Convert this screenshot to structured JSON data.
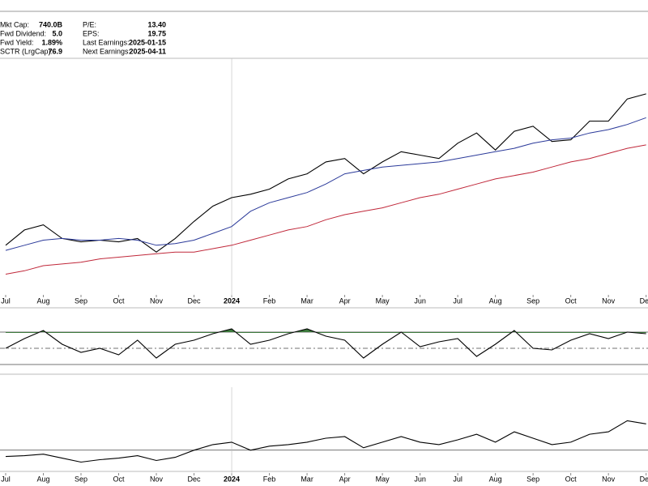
{
  "stats": [
    {
      "label": "Mkt Cap:",
      "value": "740.0B"
    },
    {
      "label": "Fwd Dividend:",
      "value": "5.0"
    },
    {
      "label": "Fwd Yield:",
      "value": "1.89%"
    },
    {
      "label": "SCTR (LrgCap):",
      "value": "76.9"
    },
    {
      "label": "P/E:",
      "value": "13.40"
    },
    {
      "label": "EPS:",
      "value": "19.75"
    },
    {
      "label": "Last Earnings:",
      "value": "2025-01-15"
    },
    {
      "label": "Next Earnings:",
      "value": "2025-04-11"
    }
  ],
  "chart_data": [
    {
      "type": "line",
      "xlim": [
        -0.15,
        17.05
      ],
      "ylim": [
        150,
        290
      ],
      "xticks": [
        {
          "value": 0,
          "label": "Jul"
        },
        {
          "value": 1,
          "label": "Aug"
        },
        {
          "value": 2,
          "label": "Sep"
        },
        {
          "value": 3,
          "label": "Oct"
        },
        {
          "value": 4,
          "label": "Nov"
        },
        {
          "value": 5,
          "label": "Dec"
        },
        {
          "value": 6,
          "label": "2024"
        },
        {
          "value": 7,
          "label": "Feb"
        },
        {
          "value": 8,
          "label": "Mar"
        },
        {
          "value": 9,
          "label": "Apr"
        },
        {
          "value": 10,
          "label": "May"
        },
        {
          "value": 11,
          "label": "Jun"
        },
        {
          "value": 12,
          "label": "Jul"
        },
        {
          "value": 13,
          "label": "Aug"
        },
        {
          "value": 14,
          "label": "Sep"
        },
        {
          "value": 15,
          "label": "Oct"
        },
        {
          "value": 16,
          "label": "Nov"
        },
        {
          "value": 17,
          "label": "Dec"
        }
      ],
      "x": [
        0,
        0.5,
        1,
        1.5,
        2,
        2.5,
        3,
        3.5,
        4,
        4.5,
        5,
        5.5,
        6,
        6.5,
        7,
        7.5,
        8,
        8.5,
        9,
        9.5,
        10,
        10.5,
        11,
        11.5,
        12,
        12.5,
        13,
        13.5,
        14,
        14.5,
        15,
        15.5,
        16,
        16.5,
        17
      ],
      "series": [
        {
          "color": "#000000",
          "values": [
            182,
            191,
            194,
            186,
            184,
            185,
            184,
            186,
            178,
            186,
            196,
            205,
            210,
            212,
            215,
            221,
            224,
            231,
            233,
            224,
            231,
            237,
            235,
            233,
            242,
            248,
            238,
            249,
            252,
            243,
            244,
            255,
            255,
            268,
            271
          ]
        },
        {
          "color": "#2b3a9a",
          "values": [
            179,
            182,
            185,
            186,
            185,
            185,
            186,
            185,
            182,
            183,
            185,
            189,
            193,
            202,
            207,
            210,
            213,
            218,
            224,
            226,
            228,
            229,
            230,
            231,
            233,
            235,
            237,
            239,
            242,
            244,
            245,
            248,
            250,
            253,
            257
          ]
        },
        {
          "color": "#c0283a",
          "values": [
            165,
            167,
            170,
            171,
            172,
            174,
            175,
            176,
            177,
            178,
            178,
            180,
            182,
            185,
            188,
            191,
            193,
            197,
            200,
            202,
            204,
            207,
            210,
            212,
            215,
            218,
            221,
            223,
            225,
            228,
            231,
            233,
            236,
            239,
            241
          ]
        }
      ]
    },
    {
      "type": "rsi",
      "xlim": [
        -0.15,
        17.05
      ],
      "ylim": [
        20,
        100
      ],
      "levels": [
        30,
        50,
        70
      ],
      "fill_color": "#3d7a3d",
      "x": [
        0,
        0.5,
        1,
        1.5,
        2,
        2.5,
        3,
        3.5,
        4,
        4.5,
        5,
        5.5,
        6,
        6.5,
        7,
        7.5,
        8,
        8.5,
        9,
        9.5,
        10,
        10.5,
        11,
        11.5,
        12,
        12.5,
        13,
        13.5,
        14,
        14.5,
        15,
        15.5,
        16,
        16.5,
        17
      ],
      "series": [
        {
          "color": "#000000",
          "values": [
            50,
            62,
            72,
            55,
            45,
            50,
            42,
            60,
            38,
            55,
            60,
            68,
            74,
            55,
            60,
            68,
            74,
            65,
            60,
            38,
            55,
            70,
            52,
            58,
            62,
            40,
            55,
            72,
            50,
            48,
            60,
            68,
            62,
            70,
            68
          ]
        }
      ]
    },
    {
      "type": "line",
      "xlim": [
        -0.15,
        17.05
      ],
      "ylim": [
        0,
        120
      ],
      "levels": [
        45
      ],
      "xticks": [
        {
          "value": 0,
          "label": "Jul"
        },
        {
          "value": 1,
          "label": "Aug"
        },
        {
          "value": 2,
          "label": "Sep"
        },
        {
          "value": 3,
          "label": "Oct"
        },
        {
          "value": 4,
          "label": "Nov"
        },
        {
          "value": 5,
          "label": "Dec"
        },
        {
          "value": 6,
          "label": "2024"
        },
        {
          "value": 7,
          "label": "Feb"
        },
        {
          "value": 8,
          "label": "Mar"
        },
        {
          "value": 9,
          "label": "Apr"
        },
        {
          "value": 10,
          "label": "May"
        },
        {
          "value": 11,
          "label": "Jun"
        },
        {
          "value": 12,
          "label": "Jul"
        },
        {
          "value": 13,
          "label": "Aug"
        },
        {
          "value": 14,
          "label": "Sep"
        },
        {
          "value": 15,
          "label": "Oct"
        },
        {
          "value": 16,
          "label": "Nov"
        },
        {
          "value": 17,
          "label": "Dec"
        }
      ],
      "x": [
        0,
        0.5,
        1,
        1.5,
        2,
        2.5,
        3,
        3.5,
        4,
        4.5,
        5,
        5.5,
        6,
        6.5,
        7,
        7.5,
        8,
        8.5,
        9,
        9.5,
        10,
        10.5,
        11,
        11.5,
        12,
        12.5,
        13,
        13.5,
        14,
        14.5,
        15,
        15.5,
        16,
        16.5,
        17
      ],
      "series": [
        {
          "color": "#000000",
          "values": [
            37,
            38,
            40,
            35,
            30,
            33,
            35,
            38,
            32,
            36,
            45,
            52,
            55,
            45,
            50,
            52,
            55,
            60,
            62,
            48,
            55,
            62,
            55,
            52,
            58,
            65,
            55,
            68,
            60,
            52,
            55,
            65,
            68,
            82,
            78
          ]
        }
      ]
    }
  ]
}
